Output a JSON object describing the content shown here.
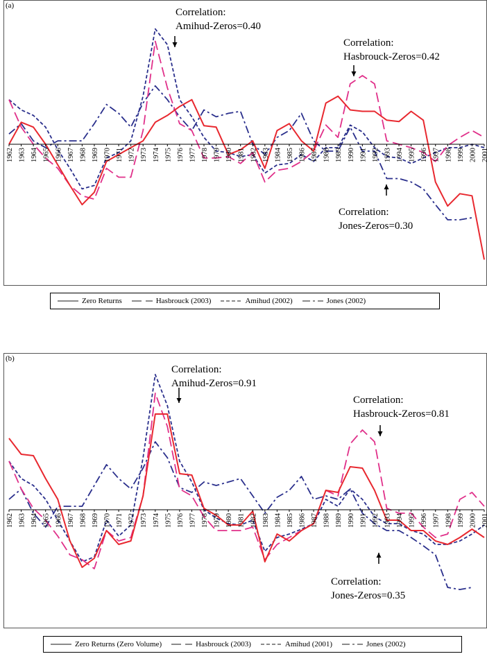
{
  "colors": {
    "zero": "#e8282f",
    "hasbrouck": "#e0308a",
    "amihud": "#2a2f8c",
    "jones": "#2a2f8c"
  },
  "chart_data": [
    {
      "type": "line",
      "panel_label": "(a)",
      "categories": [
        "1962",
        "1963",
        "1964",
        "1965",
        "1966",
        "1967",
        "1968",
        "1969",
        "1970",
        "1971",
        "1972",
        "1973",
        "1974",
        "1975",
        "1976",
        "1977",
        "1978",
        "1979",
        "1980",
        "1981",
        "1982",
        "1983",
        "1984",
        "1985",
        "1986",
        "1987",
        "1988",
        "1989",
        "1990",
        "1991",
        "1992",
        "1993",
        "1994",
        "1995",
        "1996",
        "1997",
        "1998",
        "1999",
        "2000",
        "2001"
      ],
      "ylim": [
        -200,
        200
      ],
      "grid": false,
      "legend_position": "bottom",
      "series": [
        {
          "key": "zero",
          "name": "Zero Returns",
          "values": [
            0,
            32,
            25,
            0,
            -30,
            -60,
            -88,
            -70,
            -25,
            -15,
            -5,
            5,
            32,
            42,
            55,
            65,
            27,
            25,
            -15,
            -8,
            5,
            -35,
            20,
            30,
            5,
            -10,
            60,
            70,
            50,
            48,
            48,
            35,
            33,
            48,
            35,
            -55,
            -90,
            -72,
            -75,
            -168
          ]
        },
        {
          "key": "hasbrouck",
          "name": "Hasbrouck (2003)",
          "values": [
            65,
            25,
            0,
            -20,
            -35,
            -60,
            -75,
            -80,
            -35,
            -48,
            -48,
            20,
            150,
            82,
            30,
            20,
            -20,
            -20,
            -18,
            -28,
            -12,
            -55,
            -38,
            -35,
            -25,
            -10,
            28,
            10,
            88,
            100,
            88,
            5,
            0,
            -5,
            -12,
            -25,
            -2,
            10,
            20,
            10
          ]
        },
        {
          "key": "amihud",
          "name": "Amihud (2002)",
          "values": [
            65,
            50,
            42,
            25,
            -8,
            -35,
            -65,
            -60,
            -20,
            -12,
            5,
            70,
            168,
            145,
            65,
            40,
            10,
            -10,
            -12,
            -18,
            -15,
            -42,
            -30,
            -28,
            -15,
            -25,
            -5,
            -5,
            28,
            18,
            -5,
            -18,
            -20,
            -28,
            -20,
            -12,
            -5,
            -5,
            0,
            -5
          ]
        },
        {
          "key": "jones",
          "name": "Jones (2002)",
          "values": [
            15,
            30,
            5,
            -5,
            5,
            5,
            5,
            30,
            58,
            45,
            25,
            60,
            85,
            65,
            40,
            20,
            50,
            40,
            45,
            48,
            0,
            -15,
            10,
            20,
            45,
            5,
            -10,
            -10,
            25,
            -10,
            -10,
            -50,
            -50,
            -55,
            -65,
            -88,
            -110,
            -110,
            -107,
            null
          ]
        }
      ],
      "annotations": [
        {
          "lines": [
            "Correlation:",
            "Amihud-Zeros=0.40"
          ],
          "arrow": "down"
        },
        {
          "lines": [
            "Correlation:",
            "Hasbrouck-Zeros=0.42"
          ],
          "arrow": "down"
        },
        {
          "lines": [
            "Correlation:",
            "Jones-Zeros=0.30"
          ],
          "arrow": "up"
        }
      ]
    },
    {
      "type": "line",
      "panel_label": "(b)",
      "categories": [
        "1962",
        "1963",
        "1964",
        "1965",
        "1966",
        "1967",
        "1968",
        "1969",
        "1970",
        "1971",
        "1972",
        "1973",
        "1974",
        "1975",
        "1976",
        "1977",
        "1978",
        "1979",
        "1980",
        "1981",
        "1982",
        "1983",
        "1984",
        "1985",
        "1986",
        "1987",
        "1988",
        "1989",
        "1990",
        "1991",
        "1992",
        "1993",
        "1994",
        "1995",
        "1996",
        "1997",
        "1998",
        "1999",
        "2000",
        "2001"
      ],
      "ylim": [
        -200,
        200
      ],
      "grid": false,
      "legend_position": "bottom",
      "series": [
        {
          "key": "zero",
          "name": "Zero Returns (Zero Volume)",
          "values": [
            103,
            80,
            78,
            45,
            15,
            -45,
            -83,
            -70,
            -30,
            -50,
            -45,
            20,
            138,
            138,
            52,
            50,
            2,
            -8,
            -22,
            -22,
            -2,
            -75,
            -35,
            -45,
            -30,
            -20,
            28,
            25,
            62,
            60,
            28,
            -15,
            -15,
            -30,
            -30,
            -45,
            -50,
            -40,
            -28,
            -40
          ]
        },
        {
          "key": "hasbrouck",
          "name": "Hasbrouck (2003)",
          "values": [
            70,
            30,
            2,
            -15,
            -38,
            -65,
            -72,
            -85,
            -30,
            -45,
            -40,
            20,
            168,
            120,
            30,
            20,
            -10,
            -30,
            -30,
            -30,
            -25,
            -72,
            -50,
            -40,
            -30,
            -20,
            28,
            20,
            95,
            115,
            98,
            2,
            -5,
            -5,
            -25,
            -40,
            -35,
            15,
            25,
            5
          ]
        },
        {
          "key": "amihud",
          "name": "Amihud (2001)",
          "values": [
            70,
            45,
            35,
            15,
            -15,
            -45,
            -75,
            -68,
            -15,
            -38,
            -22,
            75,
            195,
            150,
            70,
            40,
            0,
            -12,
            -20,
            -22,
            -15,
            -60,
            -40,
            -35,
            -28,
            -20,
            15,
            5,
            30,
            15,
            -10,
            -20,
            -20,
            -30,
            -35,
            -50,
            -50,
            -45,
            -35,
            -22
          ]
        },
        {
          "key": "jones",
          "name": "Jones (2002)",
          "values": [
            15,
            30,
            -5,
            -25,
            5,
            5,
            5,
            35,
            65,
            45,
            30,
            60,
            98,
            75,
            32,
            25,
            40,
            35,
            40,
            45,
            20,
            -5,
            18,
            28,
            48,
            15,
            20,
            15,
            30,
            -5,
            -20,
            -30,
            -30,
            -40,
            -52,
            -65,
            -112,
            -115,
            -112,
            null
          ]
        }
      ],
      "annotations": [
        {
          "lines": [
            "Correlation:",
            "Amihud-Zeros=0.91"
          ],
          "arrow": "down"
        },
        {
          "lines": [
            "Correlation:",
            "Hasbrouck-Zeros=0.81"
          ],
          "arrow": "down"
        },
        {
          "lines": [
            "Correlation:",
            "Jones-Zeros=0.35"
          ],
          "arrow": "up"
        }
      ]
    }
  ]
}
